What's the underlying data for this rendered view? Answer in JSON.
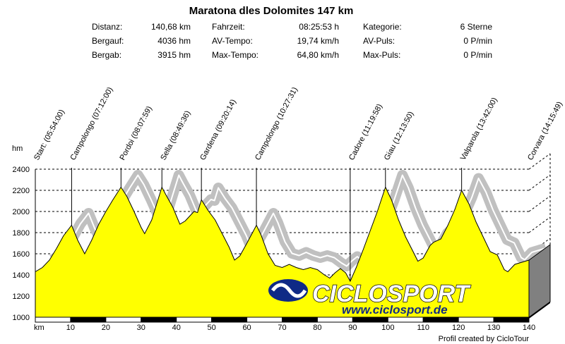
{
  "chart_data": {
    "type": "area",
    "title": "Maratona dles Dolomites 147 km",
    "ylabel": "hm",
    "xlabel": "km",
    "ylim": [
      1000,
      2400
    ],
    "xlim": [
      0,
      140
    ],
    "y_ticks": [
      1000,
      1200,
      1400,
      1600,
      1800,
      2000,
      2200,
      2400
    ],
    "x_ticks": [
      10,
      20,
      30,
      40,
      50,
      60,
      70,
      80,
      90,
      100,
      110,
      120,
      130,
      140
    ],
    "grid": true,
    "stats": [
      {
        "label": "Distanz:",
        "value": "140,68 km"
      },
      {
        "label": "Bergauf:",
        "value": "4036 hm"
      },
      {
        "label": "Bergab:",
        "value": "3915 hm"
      },
      {
        "label": "Fahrzeit:",
        "value": "08:25:53 h"
      },
      {
        "label": "AV-Tempo:",
        "value": "19,74 km/h"
      },
      {
        "label": "Max-Tempo:",
        "value": "64,80 km/h"
      },
      {
        "label": "Kategorie:",
        "value": "6 Sterne"
      },
      {
        "label": "AV-Puls:",
        "value": "0 P/min"
      },
      {
        "label": "Max-Puls:",
        "value": "0 P/min"
      }
    ],
    "waypoints": [
      {
        "label": "Start: (05:54:00)",
        "x": 0
      },
      {
        "label": "Campolongo (07:12:00)",
        "x": 10.3
      },
      {
        "label": "Pordoi (08:07:59)",
        "x": 24.3
      },
      {
        "label": "Sella (08:49:36)",
        "x": 35.9
      },
      {
        "label": "Gardena (09:20:14)",
        "x": 47.1
      },
      {
        "label": "Campolongo (10:27:31)",
        "x": 62.7
      },
      {
        "label": "Cadore (11:19:58)",
        "x": 89.3
      },
      {
        "label": "Giau (12:13:50)",
        "x": 99.3
      },
      {
        "label": "Valparola (13:42:00)",
        "x": 120.9
      },
      {
        "label": "Corvara (14:15:49)",
        "x": 140
      }
    ],
    "profile": [
      [
        0,
        1430
      ],
      [
        2,
        1470
      ],
      [
        4,
        1540
      ],
      [
        6,
        1650
      ],
      [
        8,
        1770
      ],
      [
        10.3,
        1870
      ],
      [
        12,
        1730
      ],
      [
        14,
        1600
      ],
      [
        16,
        1730
      ],
      [
        18,
        1880
      ],
      [
        20,
        2000
      ],
      [
        22,
        2110
      ],
      [
        24.3,
        2230
      ],
      [
        26,
        2140
      ],
      [
        28,
        2000
      ],
      [
        30,
        1850
      ],
      [
        31,
        1790
      ],
      [
        33,
        1920
      ],
      [
        35.9,
        2230
      ],
      [
        37,
        2160
      ],
      [
        39,
        2040
      ],
      [
        41,
        1880
      ],
      [
        42.5,
        1910
      ],
      [
        45,
        2000
      ],
      [
        46,
        1990
      ],
      [
        47.1,
        2110
      ],
      [
        49,
        2010
      ],
      [
        51,
        1920
      ],
      [
        53,
        1790
      ],
      [
        55,
        1660
      ],
      [
        56.5,
        1540
      ],
      [
        58,
        1580
      ],
      [
        60,
        1700
      ],
      [
        62.7,
        1870
      ],
      [
        64,
        1780
      ],
      [
        66,
        1600
      ],
      [
        68,
        1490
      ],
      [
        70,
        1470
      ],
      [
        72,
        1500
      ],
      [
        74,
        1470
      ],
      [
        76,
        1450
      ],
      [
        78,
        1470
      ],
      [
        80,
        1450
      ],
      [
        82,
        1400
      ],
      [
        83.5,
        1370
      ],
      [
        85,
        1420
      ],
      [
        86.5,
        1460
      ],
      [
        88,
        1420
      ],
      [
        89.3,
        1340
      ],
      [
        91,
        1470
      ],
      [
        93,
        1640
      ],
      [
        95,
        1820
      ],
      [
        97,
        2000
      ],
      [
        99.3,
        2230
      ],
      [
        101,
        2110
      ],
      [
        103,
        1920
      ],
      [
        105,
        1760
      ],
      [
        107,
        1630
      ],
      [
        108.5,
        1530
      ],
      [
        110,
        1560
      ],
      [
        112,
        1680
      ],
      [
        113,
        1710
      ],
      [
        115,
        1740
      ],
      [
        117,
        1870
      ],
      [
        119,
        2020
      ],
      [
        120.9,
        2200
      ],
      [
        123,
        2070
      ],
      [
        125,
        1900
      ],
      [
        127,
        1760
      ],
      [
        129,
        1620
      ],
      [
        131,
        1590
      ],
      [
        133,
        1450
      ],
      [
        134,
        1430
      ],
      [
        136,
        1500
      ],
      [
        138,
        1520
      ],
      [
        140,
        1540
      ]
    ],
    "brand": {
      "name": "CICLOSPORT",
      "url": "www.ciclosport.de"
    },
    "credit": "Profil created by CicloTour",
    "colors": {
      "fill": "#ffff00",
      "shadow": "#c0c0c0",
      "bar": "#000000",
      "line": "#000000"
    }
  }
}
